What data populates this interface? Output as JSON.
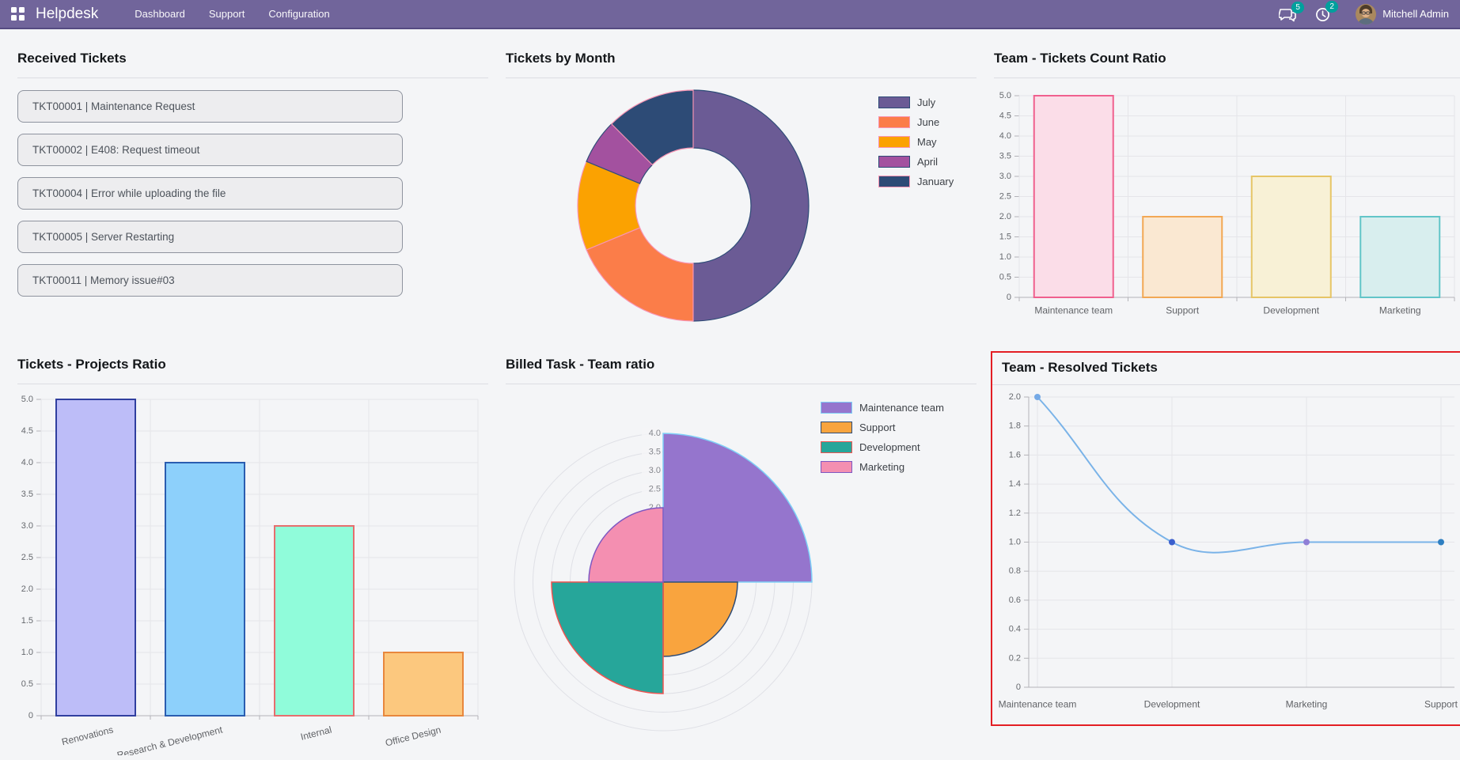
{
  "navbar": {
    "brand": "Helpdesk",
    "menu": [
      {
        "label": "Dashboard"
      },
      {
        "label": "Support"
      },
      {
        "label": "Configuration"
      }
    ],
    "messages_badge": "5",
    "activities_badge": "2",
    "user_name": "Mitchell Admin",
    "colors": {
      "bar_bg": "#71659b",
      "badge": "#00a09d"
    }
  },
  "received_tickets": {
    "title": "Received Tickets",
    "tickets": [
      {
        "label": "TKT00001 | Maintenance Request"
      },
      {
        "label": "TKT00002 | E408: Request timeout"
      },
      {
        "label": "TKT00004 | Error while uploading the file"
      },
      {
        "label": "TKT00005 | Server Restarting"
      },
      {
        "label": "TKT00011 | Memory issue#03"
      }
    ]
  },
  "chart_data": [
    {
      "id": "tickets-by-month",
      "type": "pie",
      "variant": "doughnut",
      "title": "Tickets by Month",
      "labels": [
        "July",
        "June",
        "May",
        "April",
        "January"
      ],
      "values": [
        8,
        3,
        2,
        1,
        2
      ],
      "percents": [
        50,
        18.75,
        12.5,
        6.25,
        12.5
      ],
      "colors": [
        "#6b5b95",
        "#fb7d49",
        "#fba201",
        "#a3519f",
        "#2d4b76"
      ],
      "border_colors": [
        "#2d4b76",
        "#f895b4",
        "#f895b4",
        "#2d4b76",
        "#f895b4"
      ],
      "legend_position": "right"
    },
    {
      "id": "team-tickets-count-ratio",
      "type": "bar",
      "title": "Team - Tickets Count Ratio",
      "categories": [
        "Maintenance team",
        "Support",
        "Development",
        "Marketing"
      ],
      "values": [
        5,
        2,
        3,
        2
      ],
      "fill_colors": [
        "#fbdde8",
        "#fae8d2",
        "#f8f1d6",
        "#d8eeee"
      ],
      "border_colors": [
        "#f0608e",
        "#f2a854",
        "#e6c566",
        "#62c5c8"
      ],
      "ylim": [
        0,
        5
      ],
      "ytick_step": 0.5,
      "grid": true
    },
    {
      "id": "tickets-projects-ratio",
      "type": "bar",
      "title": "Tickets - Projects Ratio",
      "categories": [
        "Renovations",
        "Research & Development",
        "Internal",
        "Office Design"
      ],
      "values": [
        5,
        4,
        3,
        1
      ],
      "fill_colors": [
        "#bdbdf8",
        "#8dd0fb",
        "#90fcda",
        "#fcc87e"
      ],
      "border_colors": [
        "#303f9f",
        "#2a5db0",
        "#e66e6e",
        "#e8873d"
      ],
      "ylim": [
        0,
        5
      ],
      "ytick_step": 0.5,
      "grid": true,
      "label_rotation": -14
    },
    {
      "id": "billed-task-team-ratio",
      "type": "polar",
      "title": "Billed Task - Team ratio",
      "categories": [
        "Maintenance team",
        "Support",
        "Development",
        "Marketing"
      ],
      "values": [
        4,
        2,
        3,
        2
      ],
      "fill_colors": [
        "#9575cd",
        "#f9a43e",
        "#26a69a",
        "#f48fb1"
      ],
      "border_colors": [
        "#7fd0f7",
        "#2d4b76",
        "#ef5350",
        "#7e57c2"
      ],
      "rlim": [
        0,
        4
      ],
      "rtick_step": 0.5,
      "rtick_labels_visible": [
        "4.0",
        "3.5",
        "3.0",
        "2.5",
        "2.0"
      ],
      "legend_position": "right"
    },
    {
      "id": "team-resolved-tickets",
      "type": "line",
      "title": "Team - Resolved Tickets",
      "categories": [
        "Maintenance team",
        "Development",
        "Marketing",
        "Support"
      ],
      "values": [
        2,
        1,
        1,
        1
      ],
      "line_color": "#7ab3e8",
      "point_colors": [
        "#74a9e6",
        "#3a5fcd",
        "#8f7fd6",
        "#2e7fc1"
      ],
      "ylim": [
        0,
        2
      ],
      "ytick_step": 0.2,
      "grid": true,
      "highlight_border": "#e31e24"
    }
  ]
}
